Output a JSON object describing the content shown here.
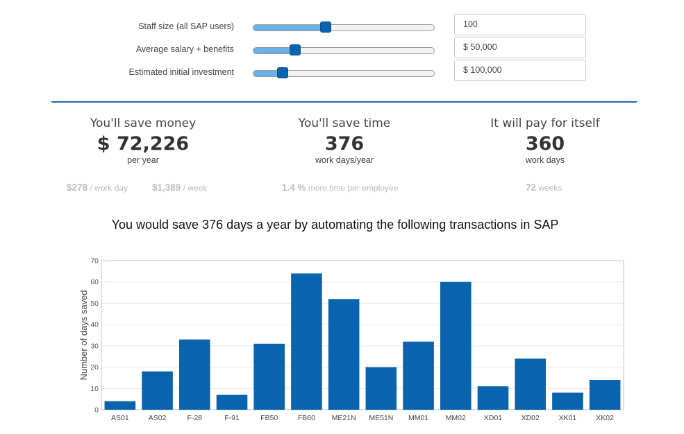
{
  "controls": [
    {
      "label": "Staff size (all SAP users)",
      "value": "100",
      "slider_fraction": 0.4
    },
    {
      "label": "Average salary + benefits",
      "value": "$ 50,000",
      "slider_fraction": 0.23
    },
    {
      "label": "Estimated initial investment",
      "value": "$ 100,000",
      "slider_fraction": 0.16
    }
  ],
  "stats": {
    "money": {
      "heading": "You'll save money",
      "value": "$ 72,226",
      "unit": "per year",
      "sub1_value": "$278",
      "sub1_unit": "/ work day",
      "sub2_value": "$1,389",
      "sub2_unit": "/ week"
    },
    "time": {
      "heading": "You'll save time",
      "value": "376",
      "unit": "work days/year",
      "sub_value": "1.4 %",
      "sub_unit": "more time per employee"
    },
    "payback": {
      "heading": "It will pay for itself",
      "value": "360",
      "unit": "work days",
      "sub_value": "72",
      "sub_unit": "weeks"
    }
  },
  "headline": "You would save 376 days a year by automating the following transactions in SAP",
  "colors": {
    "accent": "#1f69ad",
    "bar": "#0a64ad",
    "slider_fill": "#6ab1e6",
    "handle": "#0b63ad"
  },
  "chart_data": {
    "type": "bar",
    "categories": [
      "AS01",
      "AS02",
      "F-28",
      "F-91",
      "FB50",
      "FB60",
      "ME21N",
      "ME51N",
      "MM01",
      "MM02",
      "XD01",
      "XD02",
      "XK01",
      "XK02"
    ],
    "values": [
      4,
      18,
      33,
      7,
      31,
      64,
      52,
      20,
      32,
      60,
      11,
      24,
      8,
      14
    ],
    "xlabel": "",
    "ylabel": "Number of days saved",
    "ylim": [
      0,
      70
    ],
    "yticks": [
      "0",
      "10",
      "20",
      "30",
      "40",
      "50",
      "60",
      "70"
    ],
    "grid": true
  }
}
